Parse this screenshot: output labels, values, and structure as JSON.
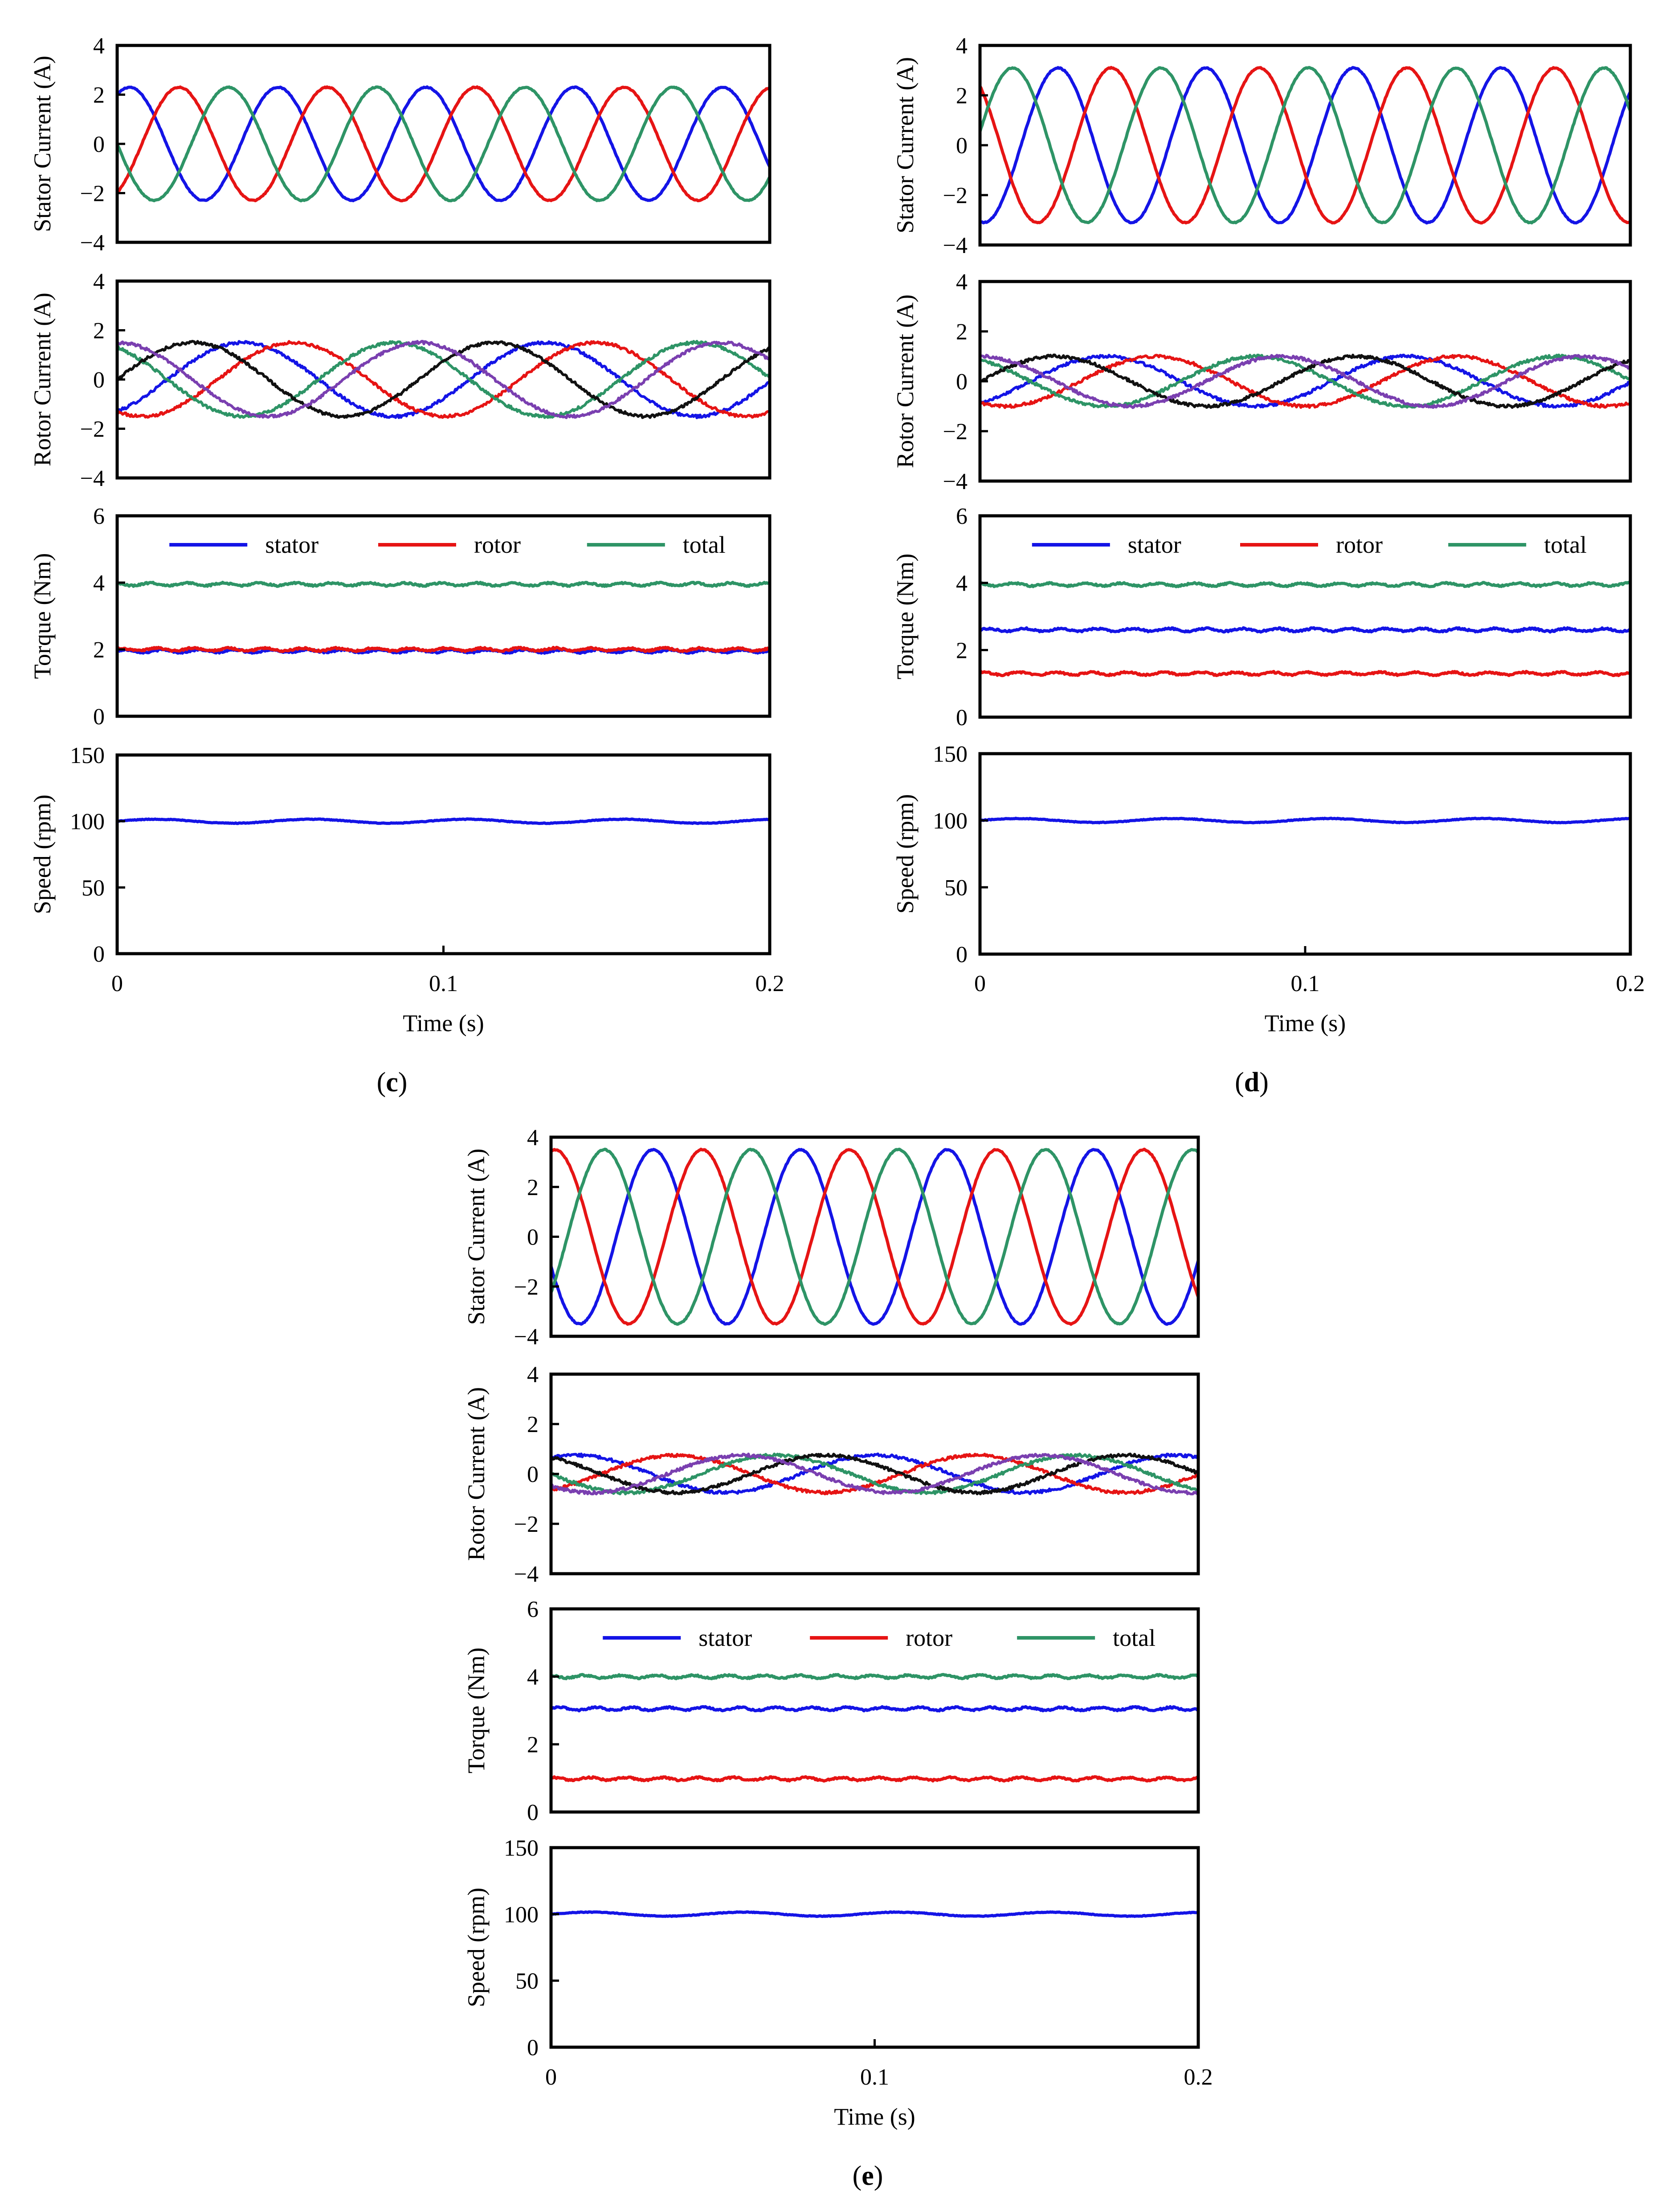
{
  "figure": {
    "panels": [
      {
        "id": "c",
        "label_prefix": "(",
        "label_letter": "c",
        "label_suffix": ")",
        "x_ticks": [
          "0",
          "0.1",
          "0.2"
        ],
        "x_title": "Time (s)"
      },
      {
        "id": "d",
        "label_prefix": "(",
        "label_letter": "d",
        "label_suffix": ")",
        "x_ticks": [
          "0",
          "0.1",
          "0.2"
        ],
        "x_title": "Time (s)"
      },
      {
        "id": "e",
        "label_prefix": "(",
        "label_letter": "e",
        "label_suffix": ")",
        "x_ticks": [
          "0",
          "0.1",
          "0.2"
        ],
        "x_title": "Time (s)"
      }
    ]
  },
  "colors": {
    "blue": "#1414e6",
    "red": "#e61414",
    "green": "#2e9466",
    "black": "#111111",
    "purple": "#7a3fb0"
  },
  "chart_data": [
    {
      "panel": "c",
      "subplot": "stator_current",
      "type": "line",
      "ylabel": "Stator Current (A)",
      "y_ticks": [
        "4",
        "2",
        "0",
        "−2",
        "−4"
      ],
      "ylim": [
        -4,
        4
      ],
      "xlim": [
        0,
        0.2
      ],
      "amplitude": 2.3,
      "frequency_hz": 22,
      "series": [
        {
          "color": "blue",
          "phase_deg": 60
        },
        {
          "color": "red",
          "phase_deg": -60
        },
        {
          "color": "green",
          "phase_deg": 180
        }
      ]
    },
    {
      "panel": "c",
      "subplot": "rotor_current",
      "type": "line",
      "ylabel": "Rotor Current (A)",
      "y_ticks": [
        "4",
        "2",
        "0",
        "−2",
        "−4"
      ],
      "ylim": [
        -4,
        4
      ],
      "xlim": [
        0,
        0.2
      ],
      "amplitude": 1.5,
      "frequency_hz": 10.8,
      "series": [
        {
          "color": "blue",
          "phase_deg": -60
        },
        {
          "color": "red",
          "phase_deg": 240
        },
        {
          "color": "green",
          "phase_deg": 120
        },
        {
          "color": "black",
          "phase_deg": 0
        },
        {
          "color": "purple",
          "phase_deg": 90
        }
      ]
    },
    {
      "panel": "c",
      "subplot": "torque",
      "type": "line",
      "ylabel": "Torque (Nm)",
      "y_ticks": [
        "6",
        "4",
        "2",
        "0"
      ],
      "ylim": [
        0,
        6
      ],
      "xlim": [
        0,
        0.2
      ],
      "legend": [
        "stator",
        "rotor",
        "total"
      ],
      "legend_placement": "top",
      "series": [
        {
          "name": "stator",
          "color": "blue",
          "mean": 1.95
        },
        {
          "name": "rotor",
          "color": "red",
          "mean": 2.0
        },
        {
          "name": "total",
          "color": "green",
          "mean": 3.95
        }
      ]
    },
    {
      "panel": "c",
      "subplot": "speed",
      "type": "line",
      "ylabel": "Speed (rpm)",
      "y_ticks": [
        "150",
        "100",
        "50",
        "0"
      ],
      "ylim": [
        0,
        150
      ],
      "xlim": [
        0,
        0.2
      ],
      "series": [
        {
          "color": "blue",
          "mean": 100
        }
      ]
    },
    {
      "panel": "d",
      "subplot": "stator_current",
      "type": "line",
      "ylabel": "Stator Current (A)",
      "y_ticks": [
        "4",
        "2",
        "0",
        "−2",
        "−4"
      ],
      "ylim": [
        -4,
        4
      ],
      "xlim": [
        0,
        0.2
      ],
      "amplitude": 3.1,
      "frequency_hz": 22,
      "series": [
        {
          "color": "blue",
          "phase_deg": 260
        },
        {
          "color": "red",
          "phase_deg": 130
        },
        {
          "color": "green",
          "phase_deg": 10
        }
      ]
    },
    {
      "panel": "d",
      "subplot": "rotor_current",
      "type": "line",
      "ylabel": "Rotor Current (A)",
      "y_ticks": [
        "4",
        "2",
        "0",
        "−2",
        "−4"
      ],
      "ylim": [
        -4,
        4
      ],
      "xlim": [
        0,
        0.2
      ],
      "amplitude": 1.0,
      "frequency_hz": 10.8,
      "series": [
        {
          "color": "blue",
          "phase_deg": -60
        },
        {
          "color": "red",
          "phase_deg": 240
        },
        {
          "color": "green",
          "phase_deg": 120
        },
        {
          "color": "black",
          "phase_deg": 0
        },
        {
          "color": "purple",
          "phase_deg": 90
        }
      ]
    },
    {
      "panel": "d",
      "subplot": "torque",
      "type": "line",
      "ylabel": "Torque (Nm)",
      "y_ticks": [
        "6",
        "4",
        "2",
        "0"
      ],
      "ylim": [
        0,
        6
      ],
      "xlim": [
        0,
        0.2
      ],
      "legend": [
        "stator",
        "rotor",
        "total"
      ],
      "legend_placement": "top",
      "series": [
        {
          "name": "stator",
          "color": "blue",
          "mean": 2.6
        },
        {
          "name": "rotor",
          "color": "red",
          "mean": 1.3
        },
        {
          "name": "total",
          "color": "green",
          "mean": 3.95
        }
      ]
    },
    {
      "panel": "d",
      "subplot": "speed",
      "type": "line",
      "ylabel": "Speed (rpm)",
      "y_ticks": [
        "150",
        "100",
        "50",
        "0"
      ],
      "ylim": [
        0,
        150
      ],
      "xlim": [
        0,
        0.2
      ],
      "series": [
        {
          "color": "blue",
          "mean": 100
        }
      ]
    },
    {
      "panel": "e",
      "subplot": "stator_current",
      "type": "line",
      "ylabel": "Stator Current (A)",
      "y_ticks": [
        "4",
        "2",
        "0",
        "−2",
        "−4"
      ],
      "ylim": [
        -4,
        4
      ],
      "xlim": [
        0,
        0.2
      ],
      "amplitude": 3.5,
      "frequency_hz": 22,
      "series": [
        {
          "color": "blue",
          "phase_deg": 200
        },
        {
          "color": "red",
          "phase_deg": 80
        },
        {
          "color": "green",
          "phase_deg": -40
        }
      ]
    },
    {
      "panel": "e",
      "subplot": "rotor_current",
      "type": "line",
      "ylabel": "Rotor Current (A)",
      "y_ticks": [
        "4",
        "2",
        "0",
        "−2",
        "−4"
      ],
      "ylim": [
        -4,
        4
      ],
      "xlim": [
        0,
        0.2
      ],
      "amplitude": 0.75,
      "frequency_hz": 10.8,
      "series": [
        {
          "color": "blue",
          "phase_deg": 60
        },
        {
          "color": "red",
          "phase_deg": 300
        },
        {
          "color": "green",
          "phase_deg": 180
        },
        {
          "color": "black",
          "phase_deg": 120
        },
        {
          "color": "purple",
          "phase_deg": 220
        }
      ]
    },
    {
      "panel": "e",
      "subplot": "torque",
      "type": "line",
      "ylabel": "Torque (Nm)",
      "y_ticks": [
        "6",
        "4",
        "2",
        "0"
      ],
      "ylim": [
        0,
        6
      ],
      "xlim": [
        0,
        0.2
      ],
      "legend": [
        "stator",
        "rotor",
        "total"
      ],
      "legend_placement": "top",
      "series": [
        {
          "name": "stator",
          "color": "blue",
          "mean": 3.05
        },
        {
          "name": "rotor",
          "color": "red",
          "mean": 0.98
        },
        {
          "name": "total",
          "color": "green",
          "mean": 4.0
        }
      ]
    },
    {
      "panel": "e",
      "subplot": "speed",
      "type": "line",
      "ylabel": "Speed (rpm)",
      "y_ticks": [
        "150",
        "100",
        "50",
        "0"
      ],
      "ylim": [
        0,
        150
      ],
      "xlim": [
        0,
        0.2
      ],
      "series": [
        {
          "color": "blue",
          "mean": 100
        }
      ]
    }
  ]
}
